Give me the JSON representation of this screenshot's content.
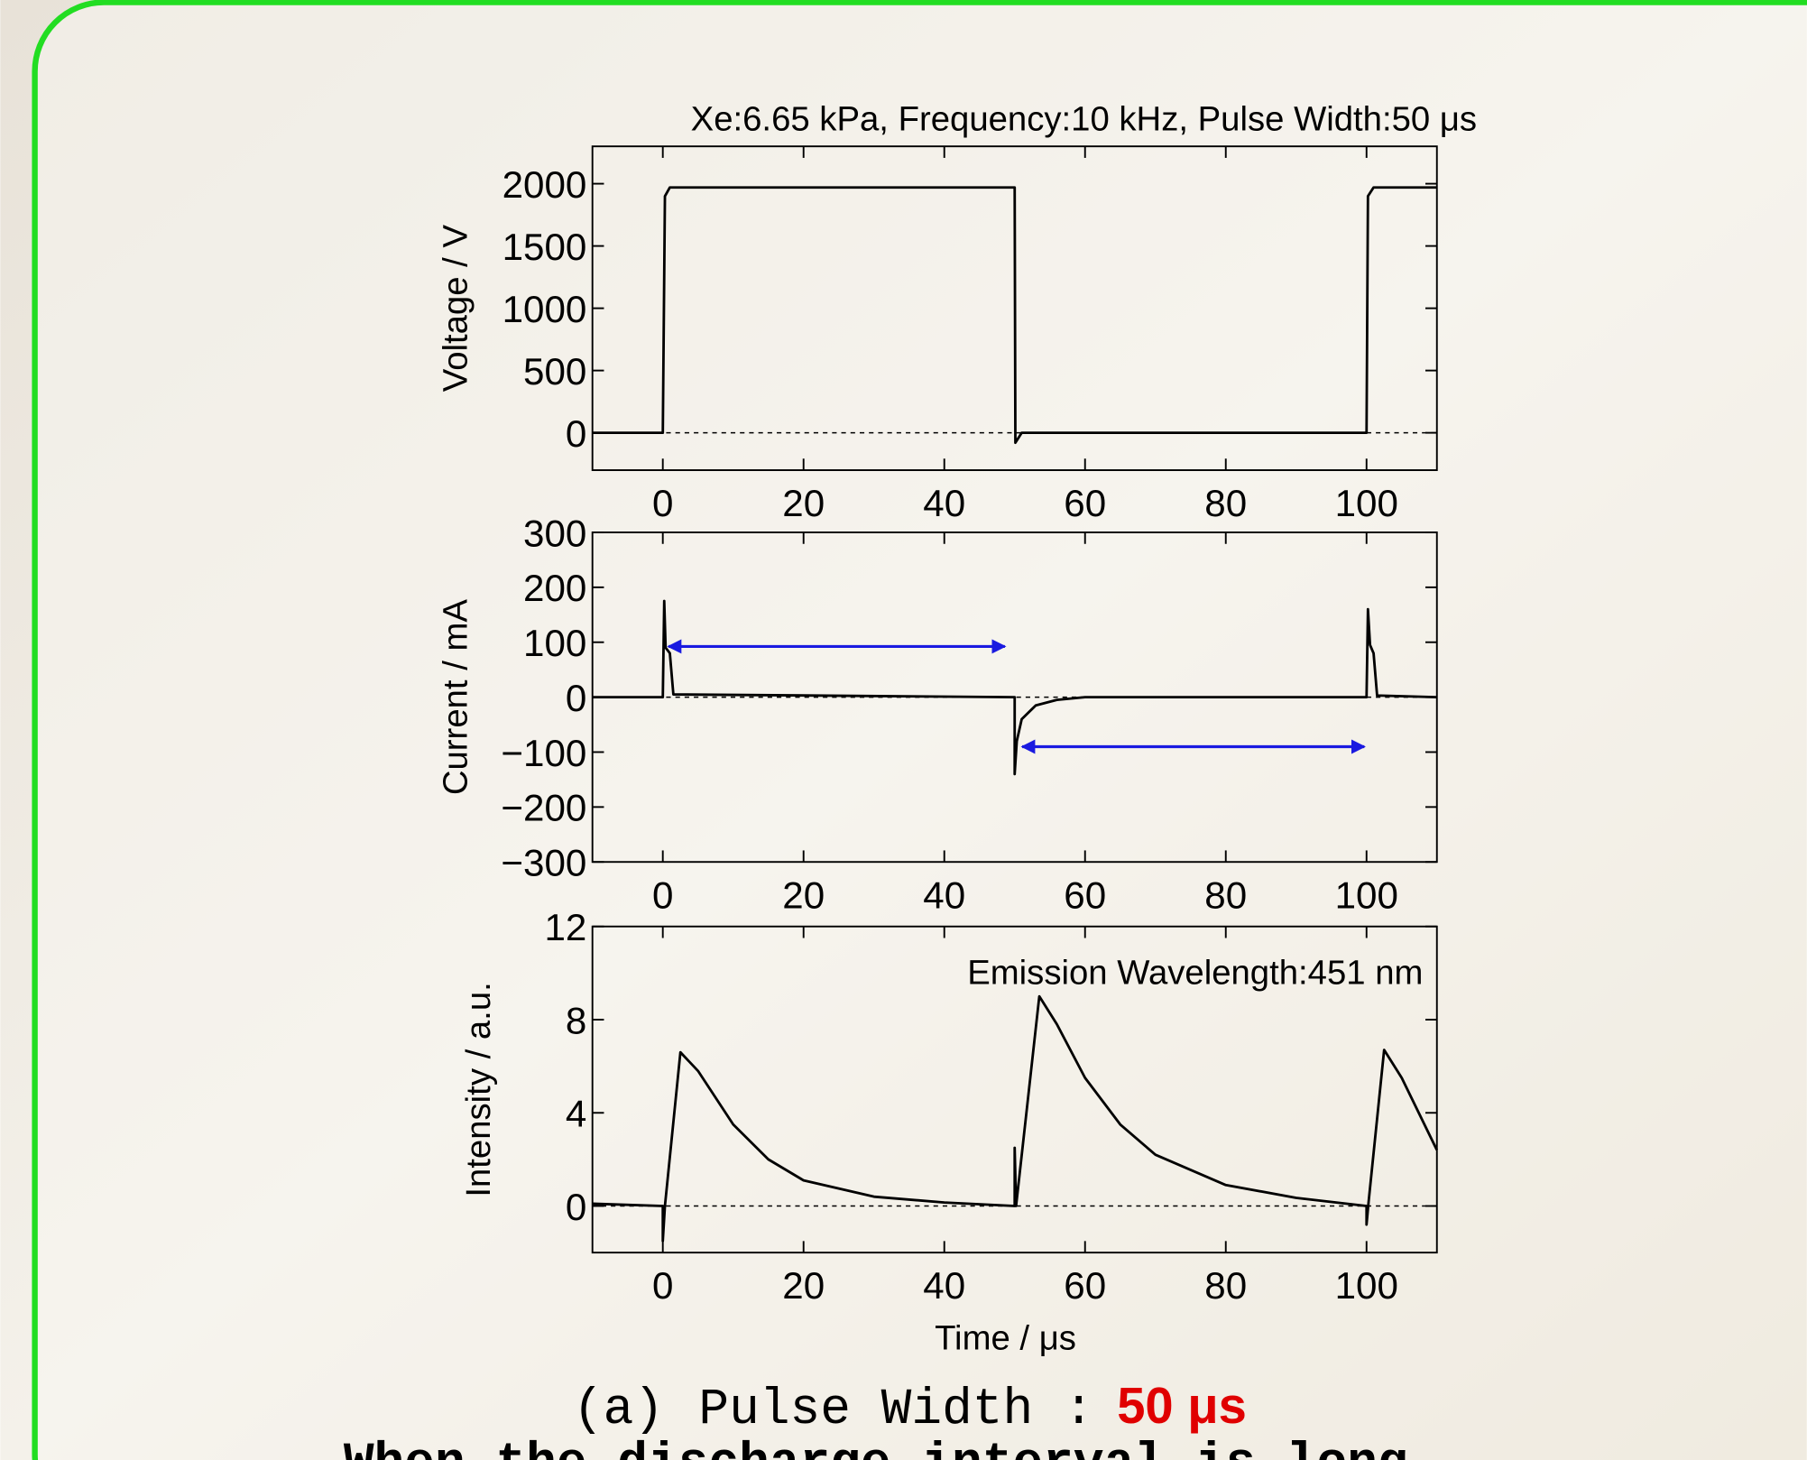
{
  "chart_data": [
    {
      "type": "line",
      "title": "Xe:6.65 kPa, Frequency:10 kHz, Pulse Width:50 μs",
      "ylabel": "Voltage / V",
      "color": "#000000",
      "x": [
        -10,
        0,
        0.3,
        1,
        50,
        50.1,
        51,
        100,
        100.2,
        101,
        110
      ],
      "values": [
        0,
        0,
        1900,
        1970,
        1970,
        -80,
        0,
        0,
        1900,
        1970,
        1970
      ],
      "xlim": [
        -10,
        110
      ],
      "xticks": [
        0,
        20,
        40,
        60,
        80,
        100
      ],
      "ylim": [
        -300,
        2300
      ],
      "yticks": [
        0,
        500,
        1000,
        1500,
        2000
      ]
    },
    {
      "type": "line",
      "ylabel": "Current / mA",
      "color": "#000000",
      "x": [
        -10,
        0,
        0.2,
        0.4,
        1,
        1.5,
        50,
        50,
        50.3,
        51,
        53,
        56,
        60,
        100,
        100.2,
        100.5,
        101,
        101.5,
        110
      ],
      "values": [
        0,
        0,
        175,
        90,
        80,
        5,
        0,
        -140,
        -80,
        -40,
        -15,
        -5,
        0,
        0,
        160,
        95,
        80,
        3,
        0
      ],
      "xlim": [
        -10,
        110
      ],
      "xticks": [
        0,
        20,
        40,
        60,
        80,
        100
      ],
      "ylim": [
        -300,
        300
      ],
      "yticks": [
        {
          "value": -300,
          "label": "−300"
        },
        {
          "value": -200,
          "label": "−200"
        },
        {
          "value": -100,
          "label": "−100"
        },
        0,
        100,
        200,
        300
      ]
    },
    {
      "type": "line",
      "ylabel": "Intensity / a.u.",
      "xlabel": "Time / μs",
      "annotation": "Emission Wavelength:451 nm",
      "color": "#000000",
      "x": [
        -10,
        0,
        0,
        0.3,
        2.5,
        5,
        10,
        15,
        20,
        30,
        40,
        50,
        50,
        50.2,
        53.5,
        56,
        60,
        65,
        70,
        80,
        90,
        100,
        100,
        100.3,
        102.5,
        105,
        110
      ],
      "values": [
        0.1,
        0,
        -1.5,
        0,
        6.6,
        5.8,
        3.5,
        2,
        1.1,
        0.4,
        0.15,
        0,
        2.5,
        0,
        9,
        7.8,
        5.5,
        3.5,
        2.2,
        0.9,
        0.35,
        0,
        -0.8,
        0.2,
        6.7,
        5.5,
        2.4
      ],
      "xlim": [
        -10,
        110
      ],
      "xticks": [
        0,
        20,
        40,
        60,
        80,
        100
      ],
      "ylim": [
        -2,
        12
      ],
      "yticks": [
        0,
        4,
        8,
        12
      ]
    }
  ],
  "caption": {
    "label": "(a)",
    "text": "Pulse Width :",
    "value": "50 μs"
  },
  "footer": "When the discharge interval is long"
}
